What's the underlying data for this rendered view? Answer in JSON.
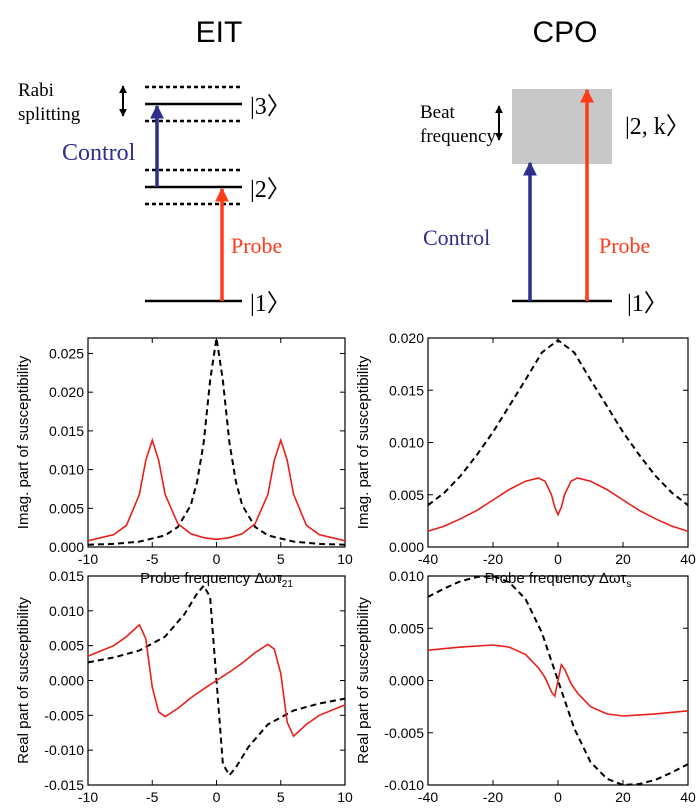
{
  "colors": {
    "red": "#e8201a",
    "blue": "#2e2e8f",
    "black": "#000000",
    "gray": "#c8c8c8",
    "probe_arrow": "#ff3b1a"
  },
  "diagrams": {
    "eit": {
      "title": "EIT",
      "rabi_label_1": "Rabi",
      "rabi_label_2": "splitting",
      "state3": "|3〉",
      "state2": "|2〉",
      "state1": "|1〉",
      "control": "Control",
      "probe": "Probe"
    },
    "cpo": {
      "title": "CPO",
      "beat_label_1": "Beat",
      "beat_label_2": "frequency",
      "state2k": "|2, k〉",
      "state1": "|1〉",
      "control": "Control",
      "probe": "Probe"
    }
  },
  "chart_data": [
    {
      "id": "eit-imag",
      "type": "line",
      "ylabel": "Imag. part of susceptibility",
      "xlabel": "Probe frequency Δωτ",
      "xlabel_sub": "21",
      "xlim": [
        -10,
        10
      ],
      "ylim": [
        0,
        0.027
      ],
      "xticks": [
        -10,
        -5,
        0,
        5,
        10
      ],
      "xtick_labels": [
        "-10",
        "-5",
        "0",
        "5",
        "10"
      ],
      "yticks": [
        0,
        0.005,
        0.01,
        0.015,
        0.02,
        0.025
      ],
      "ytick_labels": [
        "0.000",
        "0.005",
        "0.010",
        "0.015",
        "0.020",
        "0.025"
      ],
      "series": [
        {
          "style": "dashed",
          "color": "#000000",
          "x": [
            -10,
            -8,
            -6,
            -4,
            -3,
            -2,
            -1.5,
            -1,
            -0.5,
            0,
            0.5,
            1,
            1.5,
            2,
            3,
            4,
            6,
            8,
            10
          ],
          "y": [
            0.0003,
            0.0004,
            0.0007,
            0.0015,
            0.0026,
            0.0054,
            0.0085,
            0.0135,
            0.0215,
            0.027,
            0.0215,
            0.0135,
            0.0085,
            0.0054,
            0.0026,
            0.0015,
            0.0007,
            0.0004,
            0.0003
          ]
        },
        {
          "style": "solid",
          "color": "#e8201a",
          "x": [
            -10,
            -8,
            -7,
            -6,
            -5.5,
            -5,
            -4.5,
            -4,
            -3,
            -2,
            -1,
            0,
            1,
            2,
            3,
            4,
            4.5,
            5,
            5.5,
            6,
            7,
            8,
            10
          ],
          "y": [
            0.0008,
            0.0016,
            0.0028,
            0.0068,
            0.0112,
            0.0138,
            0.0112,
            0.0068,
            0.003,
            0.0017,
            0.0012,
            0.001,
            0.0012,
            0.0017,
            0.003,
            0.0068,
            0.0112,
            0.0138,
            0.0112,
            0.0068,
            0.0028,
            0.0016,
            0.0008
          ]
        }
      ]
    },
    {
      "id": "cpo-imag",
      "type": "line",
      "ylabel": "Imag. part of susceptibility",
      "xlabel": "Probe frequency Δωτ",
      "xlabel_sub": "s",
      "xlim": [
        -40,
        40
      ],
      "ylim": [
        0,
        0.02
      ],
      "xticks": [
        -40,
        -20,
        0,
        20,
        40
      ],
      "xtick_labels": [
        "-40",
        "-20",
        "0",
        "20",
        "40"
      ],
      "yticks": [
        0,
        0.005,
        0.01,
        0.015,
        0.02
      ],
      "ytick_labels": [
        "0.000",
        "0.005",
        "0.010",
        "0.015",
        "0.020"
      ],
      "series": [
        {
          "style": "dashed",
          "color": "#000000",
          "x": [
            -40,
            -35,
            -30,
            -25,
            -20,
            -15,
            -10,
            -5,
            0,
            5,
            10,
            15,
            20,
            25,
            30,
            35,
            40
          ],
          "y": [
            0.004,
            0.0052,
            0.0068,
            0.0088,
            0.011,
            0.0135,
            0.016,
            0.0186,
            0.0198,
            0.0186,
            0.016,
            0.0135,
            0.011,
            0.0088,
            0.0068,
            0.0052,
            0.004
          ]
        },
        {
          "style": "solid",
          "color": "#e8201a",
          "x": [
            -40,
            -35,
            -30,
            -25,
            -20,
            -15,
            -10,
            -6,
            -4,
            -2,
            -1,
            0,
            1,
            2,
            4,
            6,
            10,
            15,
            20,
            25,
            30,
            35,
            40
          ],
          "y": [
            0.0015,
            0.002,
            0.0027,
            0.0035,
            0.0045,
            0.0055,
            0.0063,
            0.0066,
            0.0063,
            0.005,
            0.0038,
            0.0031,
            0.0038,
            0.005,
            0.0063,
            0.0066,
            0.0063,
            0.0055,
            0.0045,
            0.0035,
            0.0027,
            0.002,
            0.0015
          ]
        }
      ]
    },
    {
      "id": "eit-real",
      "type": "line",
      "ylabel": "Real part of susceptibility",
      "xlabel": "Probe frequency Δωτ",
      "xlabel_sub": "21",
      "xlim": [
        -10,
        10
      ],
      "ylim": [
        -0.015,
        0.015
      ],
      "xticks": [
        -10,
        -5,
        0,
        5,
        10
      ],
      "xtick_labels": [
        "-10",
        "-5",
        "0",
        "5",
        "10"
      ],
      "yticks": [
        -0.015,
        -0.01,
        -0.005,
        0,
        0.005,
        0.01,
        0.015
      ],
      "ytick_labels": [
        "-0.015",
        "-0.010",
        "-0.005",
        "0.000",
        "0.005",
        "0.010",
        "0.015"
      ],
      "series": [
        {
          "style": "dashed",
          "color": "#000000",
          "x": [
            -10,
            -8,
            -6,
            -4,
            -2.5,
            -1.5,
            -1,
            -0.5,
            0,
            0.5,
            1,
            1.5,
            2.5,
            4,
            6,
            8,
            10
          ],
          "y": [
            0.0026,
            0.0033,
            0.0043,
            0.0063,
            0.0095,
            0.0125,
            0.0136,
            0.012,
            0.0,
            -0.012,
            -0.0136,
            -0.0125,
            -0.0095,
            -0.0063,
            -0.0043,
            -0.0033,
            -0.0026
          ]
        },
        {
          "style": "solid",
          "color": "#e8201a",
          "x": [
            -10,
            -8,
            -7,
            -6,
            -5.5,
            -5,
            -4.5,
            -4,
            -3,
            -2,
            -1,
            0,
            1,
            2,
            3,
            4,
            4.5,
            5,
            5.5,
            6,
            7,
            8,
            10
          ],
          "y": [
            0.0035,
            0.005,
            0.0063,
            0.008,
            0.006,
            -0.001,
            -0.0045,
            -0.0052,
            -0.004,
            -0.0025,
            -0.0012,
            0.0,
            0.0012,
            0.0025,
            0.004,
            0.0052,
            0.0045,
            0.001,
            -0.006,
            -0.008,
            -0.0063,
            -0.005,
            -0.0035
          ]
        }
      ]
    },
    {
      "id": "cpo-real",
      "type": "line",
      "ylabel": "Real part of susceptibility",
      "xlabel": "Probe frequency Δωτ",
      "xlabel_sub": "s",
      "xlim": [
        -40,
        40
      ],
      "ylim": [
        -0.01,
        0.01
      ],
      "xticks": [
        -40,
        -20,
        0,
        20,
        40
      ],
      "xtick_labels": [
        "-40",
        "-20",
        "0",
        "20",
        "40"
      ],
      "yticks": [
        -0.01,
        -0.005,
        0,
        0.005,
        0.01
      ],
      "ytick_labels": [
        "-0.010",
        "-0.005",
        "0.000",
        "0.005",
        "0.010"
      ],
      "series": [
        {
          "style": "dashed",
          "color": "#000000",
          "x": [
            -40,
            -35,
            -30,
            -25,
            -20,
            -15,
            -10,
            -5,
            0,
            5,
            10,
            15,
            20,
            25,
            30,
            35,
            40
          ],
          "y": [
            0.008,
            0.0088,
            0.0095,
            0.0099,
            0.01,
            0.0094,
            0.0078,
            0.0046,
            0.0,
            -0.0046,
            -0.0078,
            -0.0094,
            -0.01,
            -0.0099,
            -0.0095,
            -0.0088,
            -0.008
          ]
        },
        {
          "style": "solid",
          "color": "#e8201a",
          "x": [
            -40,
            -30,
            -20,
            -15,
            -10,
            -6,
            -4,
            -2,
            -1,
            0,
            1,
            2,
            4,
            6,
            10,
            15,
            20,
            30,
            40
          ],
          "y": [
            0.0029,
            0.0032,
            0.0034,
            0.0032,
            0.0025,
            0.0012,
            0.0003,
            -0.0011,
            -0.0015,
            0.0,
            0.0015,
            0.0011,
            -0.0003,
            -0.0012,
            -0.0025,
            -0.0032,
            -0.0034,
            -0.0032,
            -0.0029
          ]
        }
      ]
    }
  ]
}
